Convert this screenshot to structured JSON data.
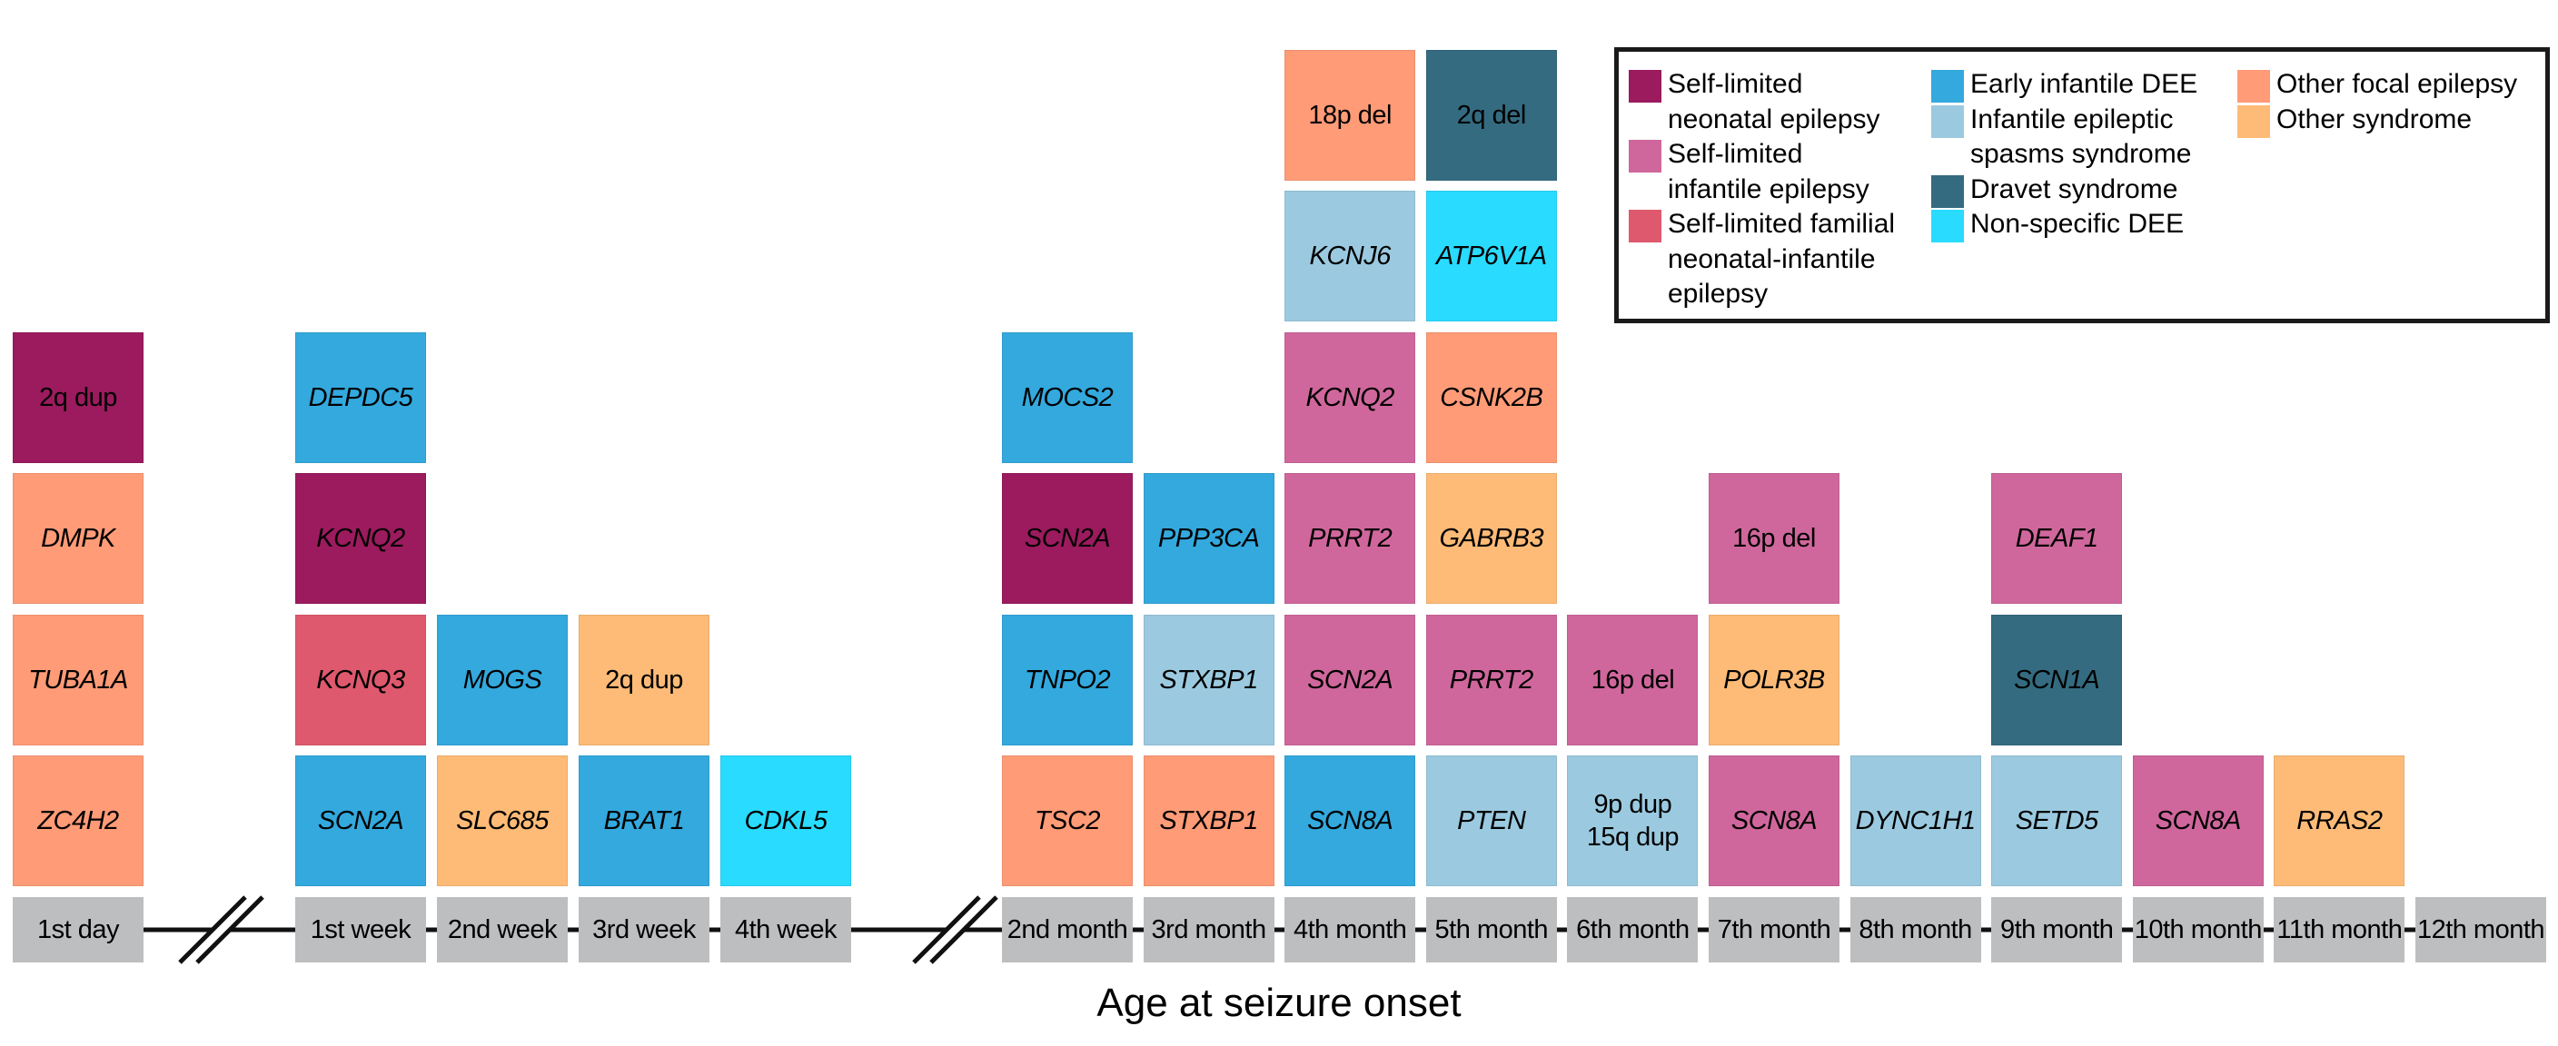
{
  "chart_data": {
    "type": "table",
    "title": "",
    "xlabel": "Age at seizure onset",
    "categories": [
      "Self-limited neonatal epilepsy",
      "Self-limited infantile epilepsy",
      "Self-limited familial neonatal-infantile epilepsy",
      "Early infantile DEE",
      "Infantile epileptic spasms syndrome",
      "Dravet syndrome",
      "Non-specific DEE",
      "Other focal epilepsy",
      "Other syndrome"
    ],
    "colors": {
      "Self-limited neonatal epilepsy": "#9b1b5e",
      "Self-limited infantile epilepsy": "#cf679c",
      "Self-limited familial neonatal-infantile epilepsy": "#de596d",
      "Early infantile DEE": "#33a9de",
      "Infantile epileptic spasms syndrome": "#9bcae0",
      "Dravet syndrome": "#346b80",
      "Non-specific DEE": "#29dbff",
      "Other focal epilepsy": "#ff9b77",
      "Other syndrome": "#fdbb77"
    },
    "axis_breaks_after": [
      "1st day",
      "4th week"
    ],
    "timepoints": [
      {
        "label": "1st day",
        "entries": [
          {
            "name": "ZC4H2",
            "type": "gene",
            "category": "Other focal epilepsy"
          },
          {
            "name": "TUBA1A",
            "type": "gene",
            "category": "Other focal epilepsy"
          },
          {
            "name": "DMPK",
            "type": "gene",
            "category": "Other focal epilepsy"
          },
          {
            "name": "2q dup",
            "type": "cnv",
            "category": "Self-limited neonatal epilepsy"
          }
        ]
      },
      {
        "label": "1st week",
        "entries": [
          {
            "name": "SCN2A",
            "type": "gene",
            "category": "Early infantile DEE"
          },
          {
            "name": "KCNQ3",
            "type": "gene",
            "category": "Self-limited familial neonatal-infantile epilepsy"
          },
          {
            "name": "KCNQ2",
            "type": "gene",
            "category": "Self-limited neonatal epilepsy"
          },
          {
            "name": "DEPDC5",
            "type": "gene",
            "category": "Early infantile DEE"
          }
        ]
      },
      {
        "label": "2nd week",
        "entries": [
          {
            "name": "SLC685",
            "type": "gene",
            "category": "Other syndrome"
          },
          {
            "name": "MOGS",
            "type": "gene",
            "category": "Early infantile DEE"
          }
        ]
      },
      {
        "label": "3rd week",
        "entries": [
          {
            "name": "BRAT1",
            "type": "gene",
            "category": "Early infantile DEE"
          },
          {
            "name": "2q dup",
            "type": "cnv",
            "category": "Other syndrome"
          }
        ]
      },
      {
        "label": "4th week",
        "entries": [
          {
            "name": "CDKL5",
            "type": "gene",
            "category": "Non-specific DEE"
          }
        ]
      },
      {
        "label": "2nd month",
        "entries": [
          {
            "name": "TSC2",
            "type": "gene",
            "category": "Other focal epilepsy"
          },
          {
            "name": "TNPO2",
            "type": "gene",
            "category": "Early infantile DEE"
          },
          {
            "name": "SCN2A",
            "type": "gene",
            "category": "Self-limited neonatal epilepsy"
          },
          {
            "name": "MOCS2",
            "type": "gene",
            "category": "Early infantile DEE"
          }
        ]
      },
      {
        "label": "3rd month",
        "entries": [
          {
            "name": "STXBP1",
            "type": "gene",
            "category": "Other focal epilepsy"
          },
          {
            "name": "STXBP1",
            "type": "gene",
            "category": "Infantile epileptic spasms syndrome"
          },
          {
            "name": "PPP3CA",
            "type": "gene",
            "category": "Early infantile DEE"
          }
        ]
      },
      {
        "label": "4th month",
        "entries": [
          {
            "name": "SCN8A",
            "type": "gene",
            "category": "Early infantile DEE"
          },
          {
            "name": "SCN2A",
            "type": "gene",
            "category": "Self-limited infantile epilepsy"
          },
          {
            "name": "PRRT2",
            "type": "gene",
            "category": "Self-limited infantile epilepsy"
          },
          {
            "name": "KCNQ2",
            "type": "gene",
            "category": "Self-limited infantile epilepsy"
          },
          {
            "name": "KCNJ6",
            "type": "gene",
            "category": "Infantile epileptic spasms syndrome"
          },
          {
            "name": "18p del",
            "type": "cnv",
            "category": "Other focal epilepsy"
          }
        ]
      },
      {
        "label": "5th month",
        "entries": [
          {
            "name": "PTEN",
            "type": "gene",
            "category": "Infantile epileptic spasms syndrome"
          },
          {
            "name": "PRRT2",
            "type": "gene",
            "category": "Self-limited infantile epilepsy"
          },
          {
            "name": "GABRB3",
            "type": "gene",
            "category": "Other syndrome"
          },
          {
            "name": "CSNK2B",
            "type": "gene",
            "category": "Other focal epilepsy"
          },
          {
            "name": "ATP6V1A",
            "type": "gene",
            "category": "Non-specific DEE"
          },
          {
            "name": "2q del",
            "type": "cnv",
            "category": "Dravet syndrome"
          }
        ]
      },
      {
        "label": "6th month",
        "entries": [
          {
            "name": "9p dup\n15q dup",
            "type": "cnv",
            "category": "Infantile epileptic spasms syndrome"
          },
          {
            "name": "16p del",
            "type": "cnv",
            "category": "Self-limited infantile epilepsy"
          }
        ]
      },
      {
        "label": "7th month",
        "entries": [
          {
            "name": "SCN8A",
            "type": "gene",
            "category": "Self-limited infantile epilepsy"
          },
          {
            "name": "POLR3B",
            "type": "gene",
            "category": "Other syndrome"
          },
          {
            "name": "16p del",
            "type": "cnv",
            "category": "Self-limited infantile epilepsy"
          }
        ]
      },
      {
        "label": "8th month",
        "entries": [
          {
            "name": "DYNC1H1",
            "type": "gene",
            "category": "Infantile epileptic spasms syndrome"
          }
        ]
      },
      {
        "label": "9th month",
        "entries": [
          {
            "name": "SETD5",
            "type": "gene",
            "category": "Infantile epileptic spasms syndrome"
          },
          {
            "name": "SCN1A",
            "type": "gene",
            "category": "Dravet syndrome"
          },
          {
            "name": "DEAF1",
            "type": "gene",
            "category": "Self-limited infantile epilepsy"
          }
        ]
      },
      {
        "label": "10th month",
        "entries": [
          {
            "name": "SCN8A",
            "type": "gene",
            "category": "Self-limited infantile epilepsy"
          }
        ]
      },
      {
        "label": "11th month",
        "entries": [
          {
            "name": "RRAS2",
            "type": "gene",
            "category": "Other syndrome"
          }
        ]
      },
      {
        "label": "12th month",
        "entries": []
      }
    ],
    "legend": {
      "placement": "top-right",
      "columns": [
        [
          {
            "label": "Self-limited\nneonatal epilepsy",
            "category": "Self-limited neonatal epilepsy"
          },
          {
            "label": "Self-limited\ninfantile epilepsy",
            "category": "Self-limited infantile epilepsy"
          },
          {
            "label": "Self-limited familial\nneonatal-infantile\nepilepsy",
            "category": "Self-limited familial neonatal-infantile epilepsy"
          }
        ],
        [
          {
            "label": "Early infantile DEE",
            "category": "Early infantile DEE"
          },
          {
            "label": "Infantile epileptic\nspasms syndrome",
            "category": "Infantile epileptic spasms syndrome"
          },
          {
            "label": "Dravet syndrome",
            "category": "Dravet syndrome"
          },
          {
            "label": "Non-specific DEE",
            "category": "Non-specific DEE"
          }
        ],
        [
          {
            "label": "Other focal epilepsy",
            "category": "Other focal epilepsy"
          },
          {
            "label": "Other syndrome",
            "category": "Other syndrome"
          }
        ]
      ]
    }
  }
}
